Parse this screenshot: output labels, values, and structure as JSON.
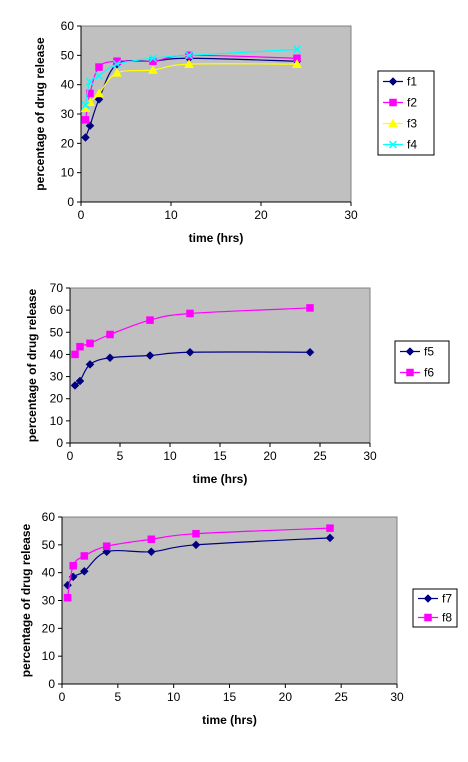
{
  "colors": {
    "plot_bg": "#c0c0c0",
    "navy": "#000080",
    "magenta": "#ff00ff",
    "yellow": "#ffff00",
    "cyan": "#00ffff"
  },
  "chart_data": [
    {
      "type": "line",
      "xlabel": "time (hrs)",
      "ylabel": "percentage of drug release",
      "xlim": [
        0,
        30
      ],
      "ylim": [
        0,
        60
      ],
      "xticks": [
        0,
        10,
        20,
        30
      ],
      "yticks": [
        0,
        10,
        20,
        30,
        40,
        50,
        60
      ],
      "grid": false,
      "legend": "right",
      "series": [
        {
          "name": "f1",
          "color": "#000080",
          "marker": "diamond",
          "x": [
            0.5,
            1,
            2,
            4,
            8,
            12,
            24
          ],
          "y": [
            22,
            26,
            35,
            47,
            48,
            49,
            48
          ]
        },
        {
          "name": "f2",
          "color": "#ff00ff",
          "marker": "square",
          "x": [
            0.5,
            1,
            2,
            4,
            8,
            12,
            24
          ],
          "y": [
            28,
            37,
            46,
            48,
            48,
            50,
            49
          ]
        },
        {
          "name": "f3",
          "color": "#ffff00",
          "marker": "triangle",
          "x": [
            0.5,
            1,
            2,
            4,
            8,
            12,
            24
          ],
          "y": [
            32,
            34,
            37,
            44,
            45,
            47,
            47
          ]
        },
        {
          "name": "f4",
          "color": "#00ffff",
          "marker": "x",
          "x": [
            0.5,
            1,
            2,
            4,
            8,
            12,
            24
          ],
          "y": [
            33,
            41,
            43,
            47,
            49,
            50,
            52
          ]
        }
      ]
    },
    {
      "type": "line",
      "xlabel": "time (hrs)",
      "ylabel": "percentage of drug release",
      "xlim": [
        0,
        30
      ],
      "ylim": [
        0,
        70
      ],
      "xticks": [
        0,
        5,
        10,
        15,
        20,
        25,
        30
      ],
      "yticks": [
        0,
        10,
        20,
        30,
        40,
        50,
        60,
        70
      ],
      "grid": false,
      "legend": "right",
      "series": [
        {
          "name": "f5",
          "color": "#000080",
          "marker": "diamond",
          "x": [
            0.5,
            1,
            2,
            4,
            8,
            12,
            24
          ],
          "y": [
            26,
            28,
            35.5,
            38.5,
            39.5,
            41,
            41
          ]
        },
        {
          "name": "f6",
          "color": "#ff00ff",
          "marker": "square",
          "x": [
            0.5,
            1,
            2,
            4,
            8,
            12,
            24
          ],
          "y": [
            40,
            43.5,
            45,
            49,
            55.5,
            58.5,
            61
          ]
        }
      ]
    },
    {
      "type": "line",
      "xlabel": "time (hrs)",
      "ylabel": "percentage of drug release",
      "xlim": [
        0,
        30
      ],
      "ylim": [
        0,
        60
      ],
      "xticks": [
        0,
        5,
        10,
        15,
        20,
        25,
        30
      ],
      "yticks": [
        0,
        10,
        20,
        30,
        40,
        50,
        60
      ],
      "grid": false,
      "legend": "right",
      "series": [
        {
          "name": "f7",
          "color": "#000080",
          "marker": "diamond",
          "x": [
            0.5,
            1,
            2,
            4,
            8,
            12,
            24
          ],
          "y": [
            35.5,
            38.5,
            40.5,
            47.5,
            47.5,
            50,
            52.5
          ]
        },
        {
          "name": "f8",
          "color": "#ff00ff",
          "marker": "square",
          "x": [
            0.5,
            1,
            2,
            4,
            8,
            12,
            24
          ],
          "y": [
            31,
            42.5,
            46,
            49.5,
            52,
            54,
            56
          ]
        }
      ]
    }
  ]
}
